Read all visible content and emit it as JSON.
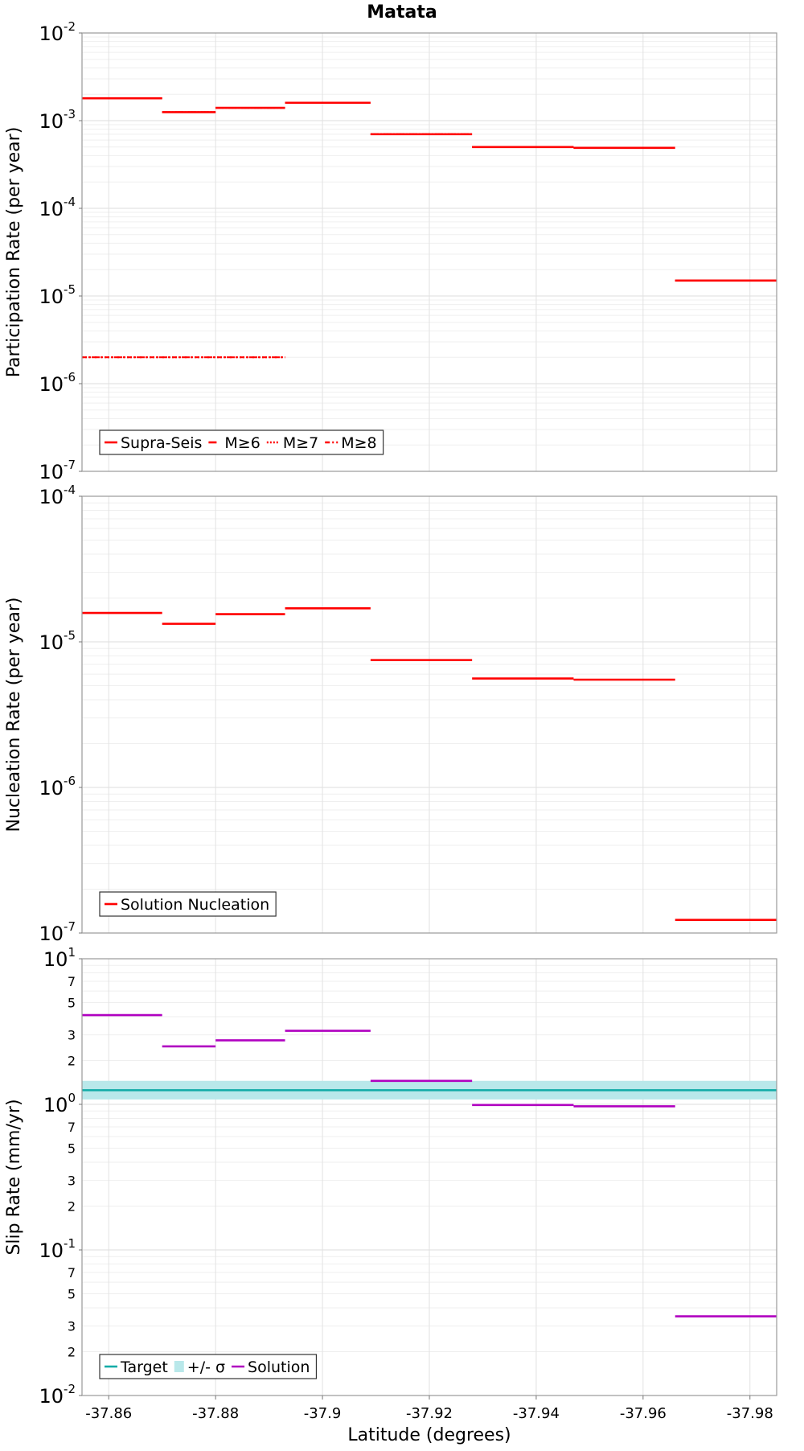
{
  "title": "Matata",
  "xlabel": "Latitude (degrees)",
  "chart_data": {
    "type": "line",
    "title": "Matata",
    "xlabel": "Latitude (degrees)",
    "xlim": [
      -37.855,
      -37.985
    ],
    "x_ticks": [
      -37.86,
      -37.88,
      -37.9,
      -37.92,
      -37.94,
      -37.96,
      -37.98
    ],
    "x_tick_labels": [
      "-37.86",
      "-37.88",
      "-37.9",
      "-37.92",
      "-37.94",
      "-37.96",
      "-37.98"
    ],
    "grid": true,
    "panels": [
      {
        "id": "participation",
        "ylabel": "Participation Rate (per year)",
        "yscale": "log",
        "ylim": [
          1e-07,
          0.01
        ],
        "y_decades": [
          -7,
          -6,
          -5,
          -4,
          -3,
          -2
        ],
        "legend": {
          "position": "bottom-left",
          "entries": [
            {
              "label": "Supra-Seis",
              "color": "#ff0000",
              "style": "solid"
            },
            {
              "label": "M≥6",
              "color": "#ff0000",
              "style": "dashed"
            },
            {
              "label": "M≥7",
              "color": "#ff0000",
              "style": "dotted"
            },
            {
              "label": "M≥8",
              "color": "#ff0000",
              "style": "dashdot"
            }
          ]
        },
        "series": [
          {
            "name": "Supra-Seis",
            "color": "#ff0000",
            "style": "solid",
            "segments": [
              {
                "x": [
                  -37.855,
                  -37.87
                ],
                "y": 0.0018
              },
              {
                "x": [
                  -37.87,
                  -37.88
                ],
                "y": 0.00125
              },
              {
                "x": [
                  -37.88,
                  -37.893
                ],
                "y": 0.0014
              },
              {
                "x": [
                  -37.893,
                  -37.909
                ],
                "y": 0.0016
              },
              {
                "x": [
                  -37.909,
                  -37.928
                ],
                "y": 0.0007
              },
              {
                "x": [
                  -37.928,
                  -37.947
                ],
                "y": 0.0005
              },
              {
                "x": [
                  -37.947,
                  -37.966
                ],
                "y": 0.00049
              },
              {
                "x": [
                  -37.966,
                  -37.985
                ],
                "y": 1.5e-05
              }
            ]
          },
          {
            "name": "M≥6",
            "color": "#ff0000",
            "style": "dashed",
            "segments": [
              {
                "x": [
                  -37.855,
                  -37.87
                ],
                "y": 0.0018
              },
              {
                "x": [
                  -37.87,
                  -37.88
                ],
                "y": 0.00125
              },
              {
                "x": [
                  -37.88,
                  -37.893
                ],
                "y": 0.0014
              },
              {
                "x": [
                  -37.893,
                  -37.909
                ],
                "y": 0.0016
              },
              {
                "x": [
                  -37.909,
                  -37.928
                ],
                "y": 0.0007
              },
              {
                "x": [
                  -37.928,
                  -37.947
                ],
                "y": 0.0005
              },
              {
                "x": [
                  -37.947,
                  -37.966
                ],
                "y": 0.00049
              },
              {
                "x": [
                  -37.966,
                  -37.985
                ],
                "y": 1.5e-05
              }
            ]
          },
          {
            "name": "M≥7",
            "color": "#ff0000",
            "style": "dotted",
            "segments": [
              {
                "x": [
                  -37.855,
                  -37.87
                ],
                "y": 0.0018
              },
              {
                "x": [
                  -37.87,
                  -37.88
                ],
                "y": 0.00125
              },
              {
                "x": [
                  -37.88,
                  -37.893
                ],
                "y": 0.0014
              },
              {
                "x": [
                  -37.893,
                  -37.909
                ],
                "y": 0.0016
              },
              {
                "x": [
                  -37.909,
                  -37.928
                ],
                "y": 0.0007
              },
              {
                "x": [
                  -37.928,
                  -37.947
                ],
                "y": 0.0005
              },
              {
                "x": [
                  -37.947,
                  -37.966
                ],
                "y": 0.00049
              },
              {
                "x": [
                  -37.966,
                  -37.985
                ],
                "y": 1.5e-05
              },
              {
                "x": [
                  -37.855,
                  -37.893
                ],
                "y": 2e-06
              }
            ]
          },
          {
            "name": "M≥8",
            "color": "#ff0000",
            "style": "dashdot",
            "segments": [
              {
                "x": [
                  -37.855,
                  -37.893
                ],
                "y": 2e-06
              }
            ]
          }
        ]
      },
      {
        "id": "nucleation",
        "ylabel": "Nucleation Rate (per year)",
        "yscale": "log",
        "ylim": [
          1e-07,
          0.0001
        ],
        "y_decades": [
          -7,
          -6,
          -5,
          -4
        ],
        "legend": {
          "position": "bottom-left",
          "entries": [
            {
              "label": "Solution Nucleation",
              "color": "#ff0000",
              "style": "solid"
            }
          ]
        },
        "series": [
          {
            "name": "Solution Nucleation",
            "color": "#ff0000",
            "style": "solid",
            "segments": [
              {
                "x": [
                  -37.855,
                  -37.87
                ],
                "y": 1.58e-05
              },
              {
                "x": [
                  -37.87,
                  -37.88
                ],
                "y": 1.33e-05
              },
              {
                "x": [
                  -37.88,
                  -37.893
                ],
                "y": 1.55e-05
              },
              {
                "x": [
                  -37.893,
                  -37.909
                ],
                "y": 1.7e-05
              },
              {
                "x": [
                  -37.909,
                  -37.928
                ],
                "y": 7.5e-06
              },
              {
                "x": [
                  -37.928,
                  -37.947
                ],
                "y": 5.6e-06
              },
              {
                "x": [
                  -37.947,
                  -37.966
                ],
                "y": 5.5e-06
              },
              {
                "x": [
                  -37.966,
                  -37.985
                ],
                "y": 1.23e-07
              }
            ]
          }
        ]
      },
      {
        "id": "slip",
        "ylabel": "Slip Rate (mm/yr)",
        "yscale": "log",
        "ylim": [
          0.01,
          10
        ],
        "y_decades": [
          -2,
          -1,
          0,
          1
        ],
        "y_minor_labels": [
          "2",
          "3",
          "5",
          "7"
        ],
        "legend": {
          "position": "bottom-left",
          "entries": [
            {
              "label": "Target",
              "color": "#14aca8",
              "style": "solid"
            },
            {
              "label": "+/- σ",
              "color": "#b9e8ea",
              "style": "band"
            },
            {
              "label": "Solution",
              "color": "#b000c0",
              "style": "solid"
            }
          ]
        },
        "band": {
          "name": "+/- σ",
          "x": [
            -37.855,
            -37.985
          ],
          "y": [
            1.08,
            1.45
          ],
          "color": "#b9e8ea"
        },
        "series": [
          {
            "name": "Target",
            "color": "#14aca8",
            "style": "solid",
            "segments": [
              {
                "x": [
                  -37.855,
                  -37.985
                ],
                "y": 1.25
              }
            ]
          },
          {
            "name": "Solution",
            "color": "#b000c0",
            "style": "solid",
            "segments": [
              {
                "x": [
                  -37.855,
                  -37.87
                ],
                "y": 4.1
              },
              {
                "x": [
                  -37.87,
                  -37.88
                ],
                "y": 2.5
              },
              {
                "x": [
                  -37.88,
                  -37.893
                ],
                "y": 2.75
              },
              {
                "x": [
                  -37.893,
                  -37.909
                ],
                "y": 3.2
              },
              {
                "x": [
                  -37.909,
                  -37.928
                ],
                "y": 1.45
              },
              {
                "x": [
                  -37.928,
                  -37.947
                ],
                "y": 0.99
              },
              {
                "x": [
                  -37.947,
                  -37.966
                ],
                "y": 0.97
              },
              {
                "x": [
                  -37.966,
                  -37.985
                ],
                "y": 0.035
              }
            ]
          }
        ]
      }
    ]
  }
}
